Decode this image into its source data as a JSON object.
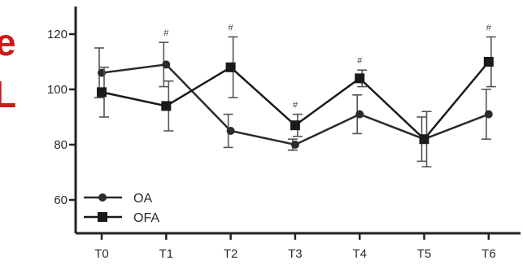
{
  "chart_data": {
    "type": "line",
    "categories": [
      "T0",
      "T1",
      "T2",
      "T3",
      "T4",
      "T5",
      "T6"
    ],
    "y_ticks": [
      60,
      80,
      100,
      120
    ],
    "ylim": [
      55,
      125
    ],
    "grid": false,
    "legend_placement": "bottom-left",
    "significance_marker": "#",
    "significance_at": [
      1,
      2,
      3,
      4,
      6
    ],
    "series": [
      {
        "name": "OA",
        "marker": "circle",
        "color": "#2b2b2b",
        "values": [
          106,
          109,
          85,
          80,
          91,
          82,
          91
        ],
        "error": [
          9,
          8,
          6,
          2,
          7,
          8,
          9
        ]
      },
      {
        "name": "OFA",
        "marker": "square",
        "color": "#1a1a1a",
        "values": [
          99,
          94,
          108,
          87,
          104,
          82,
          110
        ],
        "error": [
          9,
          9,
          11,
          4,
          3,
          10,
          9
        ]
      }
    ]
  },
  "edge_text": {
    "top": "e",
    "bottom": "L",
    "color": "#d01818"
  }
}
